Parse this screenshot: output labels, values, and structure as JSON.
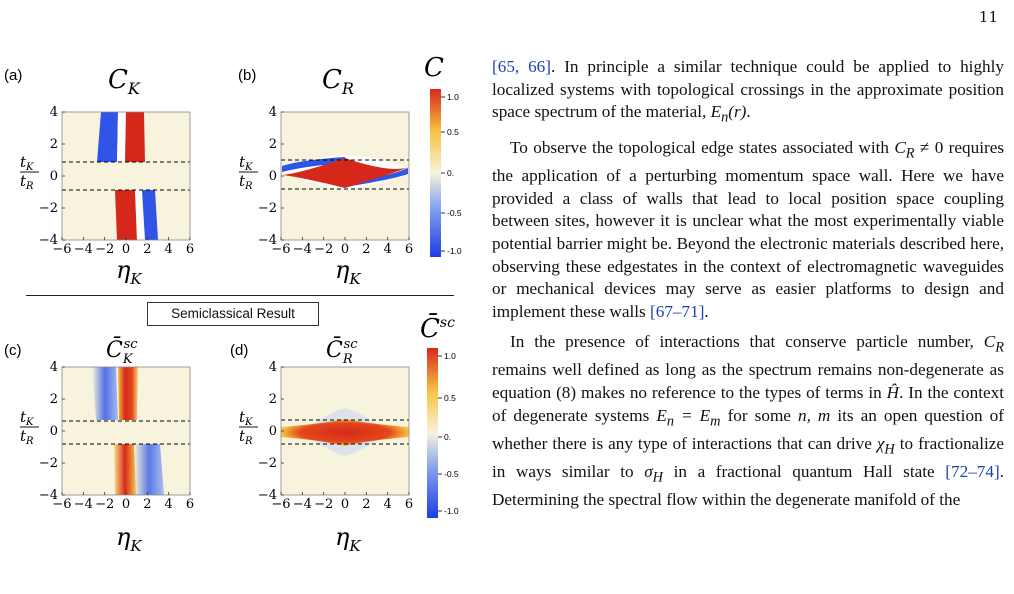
{
  "page_number": "11",
  "figure": {
    "top_label": "C",
    "bottom_label": "C̄",
    "bottom_label_sup": "sc",
    "divider_label": "Semiclassical Result",
    "panels": [
      {
        "tag": "(a)",
        "title": "C",
        "title_sub": "K",
        "title_sup": ""
      },
      {
        "tag": "(b)",
        "title": "C",
        "title_sub": "R",
        "title_sup": ""
      },
      {
        "tag": "(c)",
        "title": "C̄",
        "title_sub": "K",
        "title_sup": "sc"
      },
      {
        "tag": "(d)",
        "title": "C̄",
        "title_sub": "R",
        "title_sup": "sc"
      }
    ],
    "x_axis_label": "η",
    "x_axis_sub": "K",
    "y_axis_label_num": "t",
    "y_axis_label_num_sub": "K",
    "y_axis_label_den": "t",
    "y_axis_label_den_sub": "R",
    "x_ticks": [
      "−6",
      "−4",
      "−2",
      "0",
      "2",
      "4",
      "6"
    ],
    "y_ticks": [
      "4",
      "2",
      "0",
      "−2",
      "−4"
    ],
    "colorbar_ticks": [
      "1.0",
      "0.5",
      "0.",
      "-0.5",
      "-1.0"
    ]
  },
  "chart_data": {
    "type": "heatmap",
    "x_range": [
      -6,
      6
    ],
    "y_range": [
      -4,
      4
    ],
    "dashed_lines_y": [
      1,
      -1
    ],
    "color_range": [
      -1,
      1
    ],
    "colormap": [
      "#1f3de0",
      "#7f9cf0",
      "#f7f3dc",
      "#f6c241",
      "#d6281a"
    ],
    "background_color": "#f7f3dc"
  },
  "text": {
    "p1_a": "[65, 66]",
    "p1_b": ". In principle a similar technique could be applied to highly localized systems with topological crossings in the approximate position space spectrum of the material, ",
    "p1_math": "E",
    "p1_math_sub": "n",
    "p1_math_arg": "(r)",
    "p1_end": ".",
    "p2_a": "To observe the topological edge states associated with ",
    "p2_math": "C",
    "p2_math_sub": "R",
    "p2_math_rel": " ≠ 0",
    "p2_b": " requires the application of a perturbing momentum space wall. Here we have provided a class of walls that lead to local position space coupling between sites, however it is unclear what the most experimentally viable potential barrier might be. Beyond the electronic materials described here, observing these edgestates in the context of electromagnetic waveguides or mechanical devices may serve as easier platforms to design and implement these walls ",
    "p2_cite": "[67–71]",
    "p2_end": ".",
    "p3_a": "In the presence of interactions that conserve particle number, ",
    "p3_m1": "C",
    "p3_m1_sub": "R",
    "p3_b": " remains well defined as long as the spectrum remains non-degenerate as equation (8) makes no reference to the types of terms in ",
    "p3_m2": "Ĥ",
    "p3_c": ". In the context of degenerate systems ",
    "p3_m3": "E",
    "p3_m3_sub": "n",
    "p3_m3b": " = E",
    "p3_m3b_sub": "m",
    "p3_d": " for some ",
    "p3_m4": "n, m",
    "p3_e": " its an open question of whether there is any type of interactions that can drive ",
    "p3_m5": "χ",
    "p3_m5_sub": "H",
    "p3_f": " to fractionalize in ways similar to ",
    "p3_m6": "σ",
    "p3_m6_sub": "H",
    "p3_g": " in a fractional quantum Hall state ",
    "p3_cite": "[72–74]",
    "p3_h": ". Determining the spectral flow within the degenerate manifold of the"
  }
}
